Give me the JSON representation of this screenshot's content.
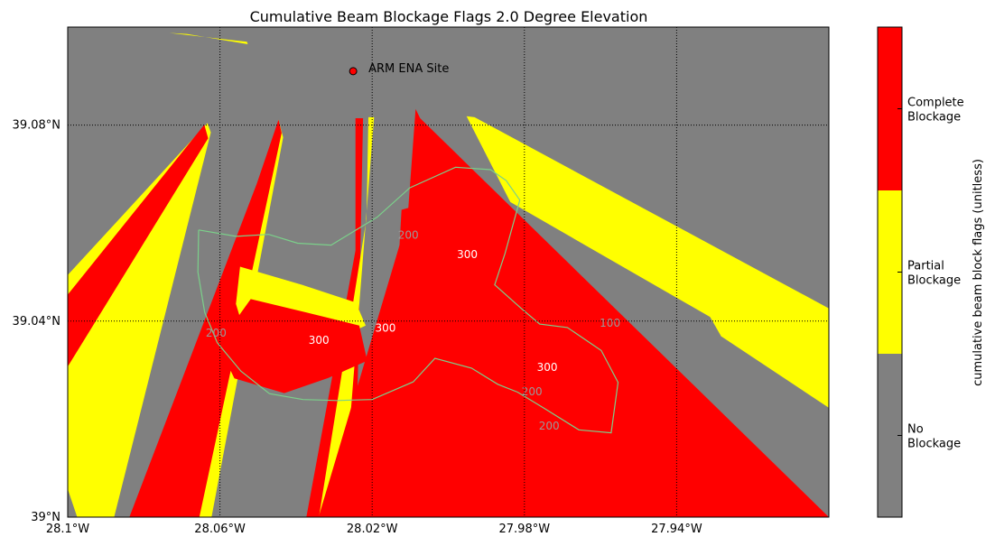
{
  "chart_data": {
    "type": "heatmap",
    "title": "Cumulative Beam Blockage Flags 2.0 Degree Elevation",
    "x_ticks": [
      "28.1°W",
      "28.06°W",
      "28.02°W",
      "27.98°W",
      "27.94°W"
    ],
    "y_ticks": [
      "39°N",
      "39.04°N",
      "39.08°N"
    ],
    "xlim": [
      -28.1,
      -27.9
    ],
    "ylim": [
      39.0,
      39.1
    ],
    "grid": true,
    "site": {
      "label": "ARM ENA Site",
      "lon": -28.025,
      "lat": 39.091
    },
    "colorbar": {
      "label": "cumulative beam block flags (unitless)",
      "classes": [
        {
          "name": "No Blockage",
          "line1": "No",
          "line2": "Blockage",
          "value": 0,
          "color": "#808080"
        },
        {
          "name": "Partial Blockage",
          "line1": "Partial",
          "line2": "Blockage",
          "value": 1,
          "color": "#ffff00"
        },
        {
          "name": "Complete Blockage",
          "line1": "Complete",
          "line2": "Blockage",
          "value": 2,
          "color": "#ff0000"
        }
      ]
    },
    "contour_labels": [
      {
        "text": "300",
        "color": "#ffffff",
        "lon": -27.995,
        "lat": 39.0535
      },
      {
        "text": "300",
        "color": "#ffffff",
        "lon": -28.034,
        "lat": 39.036
      },
      {
        "text": "300",
        "color": "#ffffff",
        "lon": -28.0165,
        "lat": 39.0385
      },
      {
        "text": "300",
        "color": "#ffffff",
        "lon": -27.974,
        "lat": 39.0305
      },
      {
        "text": "200",
        "color": "#999999",
        "lon": -28.0105,
        "lat": 39.0575
      },
      {
        "text": "200",
        "color": "#999999",
        "lon": -28.061,
        "lat": 39.0375
      },
      {
        "text": "200",
        "color": "#999999",
        "lon": -27.978,
        "lat": 39.0255
      },
      {
        "text": "200",
        "color": "#999999",
        "lon": -27.9735,
        "lat": 39.0185
      },
      {
        "text": "100",
        "color": "#999999",
        "lon": -27.9575,
        "lat": 39.0395
      }
    ],
    "regions": {
      "background": {
        "value": 0
      },
      "beams": [
        {
          "value": 1,
          "outline": [
            [
              -28.1,
              39.0494
            ],
            [
              -28.0633,
              39.0804
            ],
            [
              -28.0624,
              39.0785
            ],
            [
              -28.0878,
              39.0
            ],
            [
              -28.0975,
              39.0
            ],
            [
              -28.1,
              39.0057
            ]
          ]
        },
        {
          "value": 2,
          "outline": [
            [
              -28.1,
              39.0454
            ],
            [
              -28.0641,
              39.0801
            ],
            [
              -28.0631,
              39.0773
            ],
            [
              -28.1,
              39.0307
            ]
          ]
        },
        {
          "value": 1,
          "outline": [
            [
              -28.0446,
              39.0811
            ],
            [
              -28.0434,
              39.0775
            ],
            [
              -28.0622,
              39.0
            ],
            [
              -28.0729,
              39.0
            ],
            [
              -28.0481,
              39.0705
            ]
          ]
        },
        {
          "value": 2,
          "outline": [
            [
              -28.0446,
              39.0811
            ],
            [
              -28.0438,
              39.0784
            ],
            [
              -28.0654,
              39.0
            ],
            [
              -28.0838,
              39.0
            ],
            [
              -28.0503,
              39.0681
            ]
          ]
        },
        {
          "value": 2,
          "outline": [
            [
              -28.0244,
              39.0814
            ],
            [
              -28.0224,
              39.0814
            ],
            [
              -28.0245,
              39.0
            ],
            [
              -28.0373,
              39.0
            ],
            [
              -28.0244,
              39.0544
            ]
          ]
        },
        {
          "value": 1,
          "outline": [
            [
              -28.021,
              39.0816
            ],
            [
              -28.0195,
              39.0816
            ],
            [
              -28.0278,
              39.0
            ],
            [
              -28.034,
              39.0
            ],
            [
              -28.0215,
              39.0609
            ]
          ]
        },
        {
          "value": 2,
          "outline": [
            [
              -28.0086,
              39.0833
            ],
            [
              -28.0074,
              39.0814
            ],
            [
              -27.9,
              39.0
            ],
            [
              -28.0341,
              39.0
            ],
            [
              -28.0107,
              39.061
            ]
          ]
        },
        {
          "value": 1,
          "outline": [
            [
              -27.9952,
              39.0818
            ],
            [
              -27.9931,
              39.0816
            ],
            [
              -27.9,
              39.0426
            ],
            [
              -27.9,
              39.0269
            ],
            [
              -27.9837,
              39.0643
            ]
          ]
        },
        {
          "value": 1,
          "outline": [
            [
              -27.9,
              39.0373
            ],
            [
              -27.9,
              39.0223
            ],
            [
              -27.9283,
              39.0369
            ],
            [
              -27.9323,
              39.0423
            ]
          ]
        },
        {
          "value": 1,
          "outline": [
            [
              -28.0733,
              39.0988
            ],
            [
              -28.0687,
              39.0986
            ],
            [
              -28.0527,
              39.0965
            ],
            [
              -28.0529,
              39.097
            ]
          ]
        },
        {
          "value": 1,
          "outline": [
            [
              -28.0547,
              39.0511
            ],
            [
              -28.0384,
              39.0474
            ],
            [
              -28.0243,
              39.0438
            ],
            [
              -28.0217,
              39.0391
            ],
            [
              -28.0315,
              39.0355
            ],
            [
              -28.0422,
              39.0342
            ],
            [
              -28.0533,
              39.0371
            ],
            [
              -28.0558,
              39.0435
            ]
          ]
        },
        {
          "value": 2,
          "outline": [
            [
              -28.0519,
              39.0445
            ],
            [
              -28.0375,
              39.0418
            ],
            [
              -28.0234,
              39.0391
            ],
            [
              -28.0213,
              39.0319
            ],
            [
              -28.0315,
              39.0284
            ],
            [
              -28.0431,
              39.0253
            ],
            [
              -28.0562,
              39.0283
            ],
            [
              -28.0605,
              39.0352
            ]
          ]
        },
        {
          "value": 2,
          "outline": [
            [
              -28.0123,
              39.0627
            ],
            [
              -27.9974,
              39.066
            ],
            [
              -27.9867,
              39.0612
            ],
            [
              -27.9886,
              39.0521
            ],
            [
              -27.9969,
              39.0467
            ],
            [
              -28.0082,
              39.0459
            ],
            [
              -28.0129,
              39.0542
            ]
          ]
        }
      ]
    },
    "coast_outline": [
      [
        -28.0656,
        39.0586
      ],
      [
        -28.0557,
        39.0573
      ],
      [
        -28.0472,
        39.0577
      ],
      [
        -28.0396,
        39.0559
      ],
      [
        -28.0308,
        39.0555
      ],
      [
        -28.0187,
        39.0612
      ],
      [
        -28.0101,
        39.0672
      ],
      [
        -27.9981,
        39.0714
      ],
      [
        -27.9889,
        39.0709
      ],
      [
        -27.9848,
        39.0687
      ],
      [
        -27.9812,
        39.0647
      ],
      [
        -27.9851,
        39.0538
      ],
      [
        -27.9878,
        39.0474
      ],
      [
        -27.9807,
        39.0425
      ],
      [
        -27.976,
        39.0394
      ],
      [
        -27.9687,
        39.0387
      ],
      [
        -27.9598,
        39.034
      ],
      [
        -27.9554,
        39.0275
      ],
      [
        -27.9572,
        39.0172
      ],
      [
        -27.9657,
        39.0178
      ],
      [
        -27.9752,
        39.0224
      ],
      [
        -27.9818,
        39.0255
      ],
      [
        -27.987,
        39.0271
      ],
      [
        -27.9939,
        39.0304
      ],
      [
        -28.0035,
        39.0324
      ],
      [
        -28.0092,
        39.0276
      ],
      [
        -28.02,
        39.024
      ],
      [
        -28.0293,
        39.0238
      ],
      [
        -28.0382,
        39.024
      ],
      [
        -28.047,
        39.0252
      ],
      [
        -28.0545,
        39.0298
      ],
      [
        -28.0607,
        39.0356
      ],
      [
        -28.064,
        39.0418
      ],
      [
        -28.0658,
        39.05
      ],
      [
        -28.0656,
        39.0586
      ]
    ]
  }
}
